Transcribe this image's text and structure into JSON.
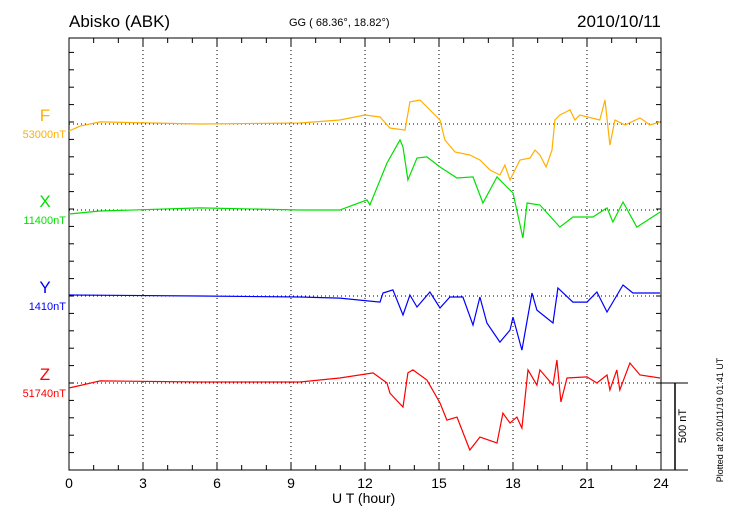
{
  "header": {
    "station": "Abisko (ABK)",
    "coords": "GG ( 68.36°,  18.82°)",
    "date": "2010/10/11"
  },
  "footer": {
    "plotted": "Plotted at 2010/11/19 01:41 UT"
  },
  "chart_data": {
    "type": "line",
    "xlabel": "U T (hour)",
    "xlim": [
      0,
      24
    ],
    "x_ticks": [
      "0",
      "3",
      "6",
      "9",
      "12",
      "15",
      "18",
      "21",
      "24"
    ],
    "grid": "dotted vertical every 3 hours, dotted horizontal at each component baseline",
    "scale_bar": "500 nT",
    "y_tick_interval_nT": 100,
    "series": [
      {
        "name": "F",
        "baseline": "53000nT",
        "color": "#ffb000",
        "points": [
          [
            0,
            -40
          ],
          [
            0.45,
            -12
          ],
          [
            1.26,
            12
          ],
          [
            5.31,
            0
          ],
          [
            9.36,
            6
          ],
          [
            10.98,
            23
          ],
          [
            12.0,
            52
          ],
          [
            12.61,
            40
          ],
          [
            13.01,
            -23
          ],
          [
            13.62,
            -35
          ],
          [
            13.82,
            127
          ],
          [
            14.23,
            138
          ],
          [
            14.63,
            81
          ],
          [
            15.04,
            23
          ],
          [
            15.24,
            -92
          ],
          [
            15.65,
            -161
          ],
          [
            16.25,
            -178
          ],
          [
            16.66,
            -207
          ],
          [
            17.07,
            -265
          ],
          [
            17.47,
            -293
          ],
          [
            17.67,
            -236
          ],
          [
            17.88,
            -322
          ],
          [
            18.28,
            -207
          ],
          [
            18.69,
            -196
          ],
          [
            18.89,
            -150
          ],
          [
            19.09,
            -178
          ],
          [
            19.34,
            -247
          ],
          [
            19.58,
            -150
          ],
          [
            19.7,
            23
          ],
          [
            19.9,
            52
          ],
          [
            20.31,
            81
          ],
          [
            20.51,
            23
          ],
          [
            20.71,
            52
          ],
          [
            21.52,
            23
          ],
          [
            21.73,
            138
          ],
          [
            21.93,
            -121
          ],
          [
            22.13,
            23
          ],
          [
            22.54,
            -6
          ],
          [
            23.15,
            35
          ],
          [
            23.55,
            -6
          ],
          [
            23.96,
            12
          ]
        ]
      },
      {
        "name": "X",
        "baseline": "11400nT",
        "color": "#00e000",
        "points": [
          [
            0,
            -23
          ],
          [
            1.26,
            -6
          ],
          [
            5.31,
            12
          ],
          [
            9.36,
            0
          ],
          [
            10.98,
            0
          ],
          [
            12.08,
            58
          ],
          [
            12.2,
            29
          ],
          [
            12.89,
            270
          ],
          [
            13.42,
            403
          ],
          [
            13.54,
            362
          ],
          [
            13.74,
            173
          ],
          [
            14.11,
            299
          ],
          [
            14.51,
            305
          ],
          [
            15.04,
            247
          ],
          [
            15.73,
            184
          ],
          [
            16.38,
            190
          ],
          [
            16.78,
            40
          ],
          [
            17.35,
            190
          ],
          [
            17.75,
            132
          ],
          [
            18.0,
            98
          ],
          [
            18.4,
            -161
          ],
          [
            18.57,
            40
          ],
          [
            19.09,
            29
          ],
          [
            19.9,
            -98
          ],
          [
            20.43,
            -40
          ],
          [
            21.24,
            -40
          ],
          [
            21.81,
            12
          ],
          [
            22.05,
            -69
          ],
          [
            22.46,
            46
          ],
          [
            23.02,
            -98
          ],
          [
            23.96,
            -12
          ]
        ]
      },
      {
        "name": "Y",
        "baseline": "1410nT",
        "color": "#0000ff",
        "points": [
          [
            0,
            6
          ],
          [
            5.31,
            0
          ],
          [
            9.36,
            -6
          ],
          [
            10.98,
            -12
          ],
          [
            12.61,
            -35
          ],
          [
            12.73,
            17
          ],
          [
            13.13,
            35
          ],
          [
            13.54,
            -109
          ],
          [
            13.82,
            6
          ],
          [
            14.11,
            -63
          ],
          [
            14.63,
            23
          ],
          [
            15.04,
            -69
          ],
          [
            15.44,
            -6
          ],
          [
            15.97,
            -6
          ],
          [
            16.38,
            -167
          ],
          [
            16.66,
            -6
          ],
          [
            16.94,
            -155
          ],
          [
            17.47,
            -265
          ],
          [
            17.88,
            -196
          ],
          [
            18.0,
            -121
          ],
          [
            18.36,
            -311
          ],
          [
            18.77,
            17
          ],
          [
            18.97,
            -81
          ],
          [
            19.62,
            -155
          ],
          [
            19.82,
            46
          ],
          [
            20.43,
            -35
          ],
          [
            21.0,
            -35
          ],
          [
            21.4,
            23
          ],
          [
            21.81,
            -92
          ],
          [
            22.46,
            63
          ],
          [
            22.86,
            17
          ],
          [
            23.96,
            17
          ]
        ]
      },
      {
        "name": "Z",
        "baseline": "51740nT",
        "color": "#ff0000",
        "points": [
          [
            0,
            -29
          ],
          [
            1.26,
            12
          ],
          [
            5.31,
            6
          ],
          [
            9.36,
            6
          ],
          [
            10.98,
            29
          ],
          [
            12.33,
            58
          ],
          [
            12.89,
            0
          ],
          [
            13.01,
            -58
          ],
          [
            13.54,
            -138
          ],
          [
            13.74,
            58
          ],
          [
            13.94,
            75
          ],
          [
            14.51,
            17
          ],
          [
            15.04,
            -115
          ],
          [
            15.32,
            -213
          ],
          [
            15.73,
            -196
          ],
          [
            16.25,
            -385
          ],
          [
            16.66,
            -311
          ],
          [
            17.35,
            -345
          ],
          [
            17.59,
            -173
          ],
          [
            17.88,
            -230
          ],
          [
            18.16,
            -196
          ],
          [
            18.36,
            -259
          ],
          [
            18.61,
            75
          ],
          [
            18.97,
            -12
          ],
          [
            19.09,
            75
          ],
          [
            19.62,
            -12
          ],
          [
            19.78,
            132
          ],
          [
            19.94,
            -109
          ],
          [
            20.19,
            29
          ],
          [
            21.0,
            35
          ],
          [
            21.4,
            0
          ],
          [
            21.81,
            46
          ],
          [
            21.93,
            -40
          ],
          [
            22.21,
            75
          ],
          [
            22.33,
            -40
          ],
          [
            22.74,
            115
          ],
          [
            23.15,
            46
          ],
          [
            23.96,
            29
          ]
        ]
      }
    ]
  }
}
